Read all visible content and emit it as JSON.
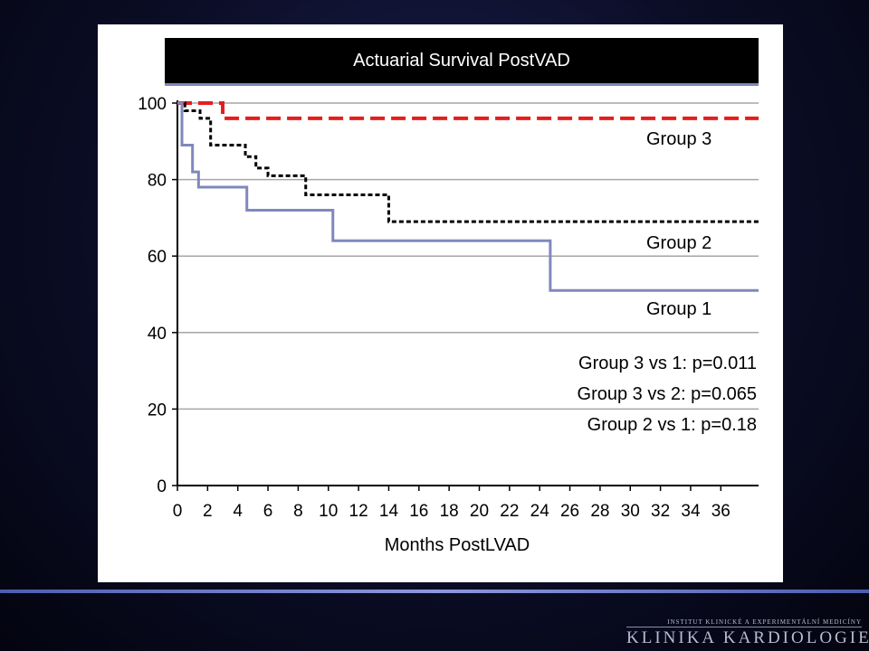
{
  "chart_data": {
    "type": "line",
    "step": true,
    "title": "Actuarial Survival PostVAD",
    "xlabel": "Months PostLVAD",
    "ylabel": "",
    "xlim": [
      0,
      38.5
    ],
    "ylim": [
      0,
      100
    ],
    "x_ticks": [
      0,
      2,
      4,
      6,
      8,
      10,
      12,
      14,
      16,
      18,
      20,
      22,
      24,
      26,
      28,
      30,
      32,
      34,
      36
    ],
    "y_ticks": [
      0,
      20,
      40,
      60,
      80,
      100
    ],
    "grid": "horizontal",
    "series": [
      {
        "name": "Group 3",
        "color": "#e41e1e",
        "style": "dashed",
        "x": [
          0,
          3,
          38.5
        ],
        "y": [
          100,
          96,
          96
        ]
      },
      {
        "name": "Group 2",
        "color": "#000000",
        "style": "dotted",
        "x": [
          0,
          0.5,
          1.5,
          2.2,
          4.5,
          5.2,
          6,
          8.5,
          14,
          38.5
        ],
        "y": [
          100,
          98,
          96,
          89,
          86,
          83,
          81,
          76,
          69,
          69
        ]
      },
      {
        "name": "Group 1",
        "color": "#8088bc",
        "style": "solid",
        "x": [
          0,
          0.3,
          1,
          1.4,
          4.6,
          10.3,
          24.7,
          38.5
        ],
        "y": [
          100,
          89,
          82,
          78,
          72,
          64,
          51,
          51
        ]
      }
    ],
    "annotations": [
      "Group 3 vs 1: p=0.011",
      "Group 3 vs 2: p=0.065",
      "Group 2 vs 1: p=0.18"
    ]
  },
  "footer": {
    "institute": "INSTITUT KLINICKÉ A EXPERIMENTÁLNÍ MEDICÍNY",
    "department": "KLINIKA KARDIOLOGIE"
  }
}
